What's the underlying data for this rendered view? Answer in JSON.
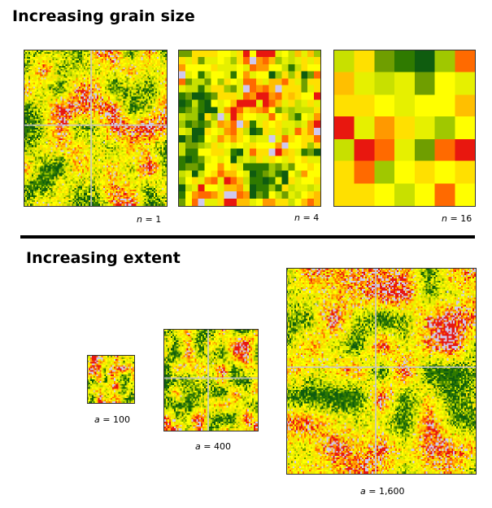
{
  "sections": {
    "grain": {
      "title": "Increasing grain size",
      "panels": [
        {
          "var": "n",
          "value": "1",
          "cells": 90,
          "seed": 11
        },
        {
          "var": "n",
          "value": "4",
          "cells": 22,
          "seed": 23
        },
        {
          "var": "n",
          "value": "16",
          "cells": 7,
          "seed": 37
        }
      ]
    },
    "extent": {
      "title": "Increasing extent",
      "panels": [
        {
          "var": "a",
          "value": "100",
          "cells": 30,
          "seed": 51
        },
        {
          "var": "a",
          "value": "400",
          "cells": 58,
          "seed": 67
        },
        {
          "var": "a",
          "value": "1,600",
          "cells": 118,
          "seed": 83
        }
      ]
    }
  },
  "palette": [
    "#e8170f",
    "#ff6a00",
    "#ff9900",
    "#ffbf00",
    "#ffe000",
    "#ffff00",
    "#e6f000",
    "#c8e000",
    "#a0c800",
    "#6f9e00",
    "#2f7a00",
    "#0f5c0f",
    "#cfc8ee"
  ]
}
